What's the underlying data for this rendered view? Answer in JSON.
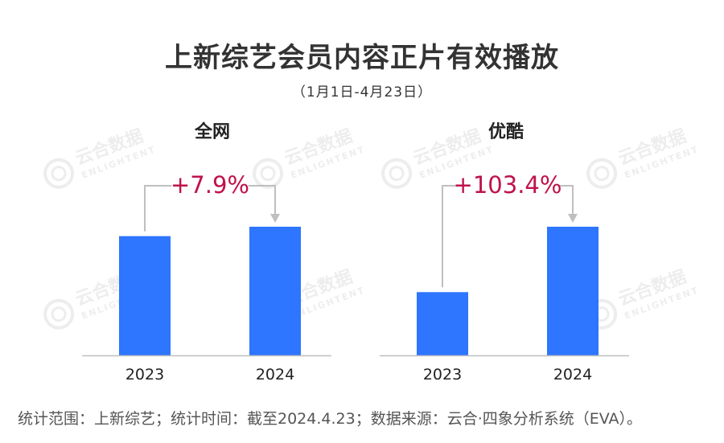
{
  "header": {
    "title": "上新综艺会员内容正片有效播放",
    "subtitle": "（1月1日-4月23日）"
  },
  "colors": {
    "bar": "#2e75ff",
    "growth_label": "#c0124a",
    "connector": "#bfbfbf",
    "axis": "#bfbfbf"
  },
  "watermark": {
    "cn": "云合数据",
    "en": "ENLIGHTENT"
  },
  "chart_data": [
    {
      "type": "bar",
      "title": "全网",
      "categories": [
        "2023",
        "2024"
      ],
      "values": [
        1.0,
        1.079
      ],
      "growth_label": "+7.9%"
    },
    {
      "type": "bar",
      "title": "优酷",
      "categories": [
        "2023",
        "2024"
      ],
      "values": [
        1.0,
        2.034
      ],
      "growth_label": "+103.4%"
    }
  ],
  "footer": {
    "note": "统计范围：上新综艺；统计时间：截至2024.4.23；数据来源：云合·四象分析系统（EVA）。"
  }
}
